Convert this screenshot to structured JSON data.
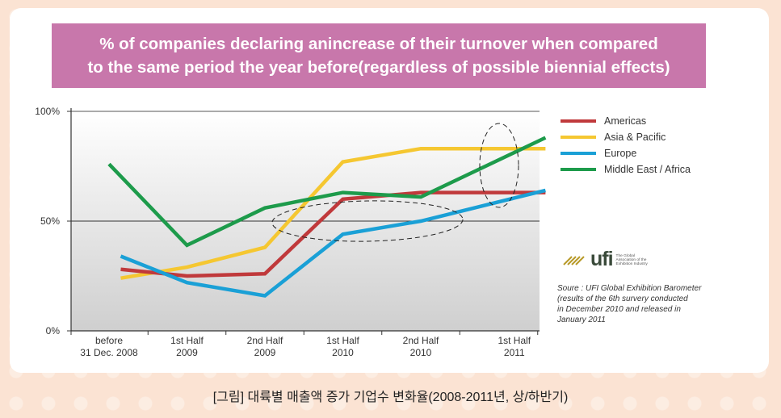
{
  "title": {
    "line1": "% of companies declaring anincrease of their turnover when compared",
    "line2": "to the same period the year before(regardless of possible biennial effects)"
  },
  "chart_data": {
    "type": "line",
    "categories": [
      [
        "before",
        "31 Dec. 2008"
      ],
      [
        "1st Half",
        "2009"
      ],
      [
        "2nd Half",
        "2009"
      ],
      [
        "1st Half",
        "2010"
      ],
      [
        "2nd Half",
        "2010"
      ],
      [
        "1st Half",
        "2011"
      ]
    ],
    "y_ticks": [
      "0%",
      "50%",
      "100%"
    ],
    "ylim": [
      0,
      100
    ],
    "grid": "50% line only",
    "legend_position": "right",
    "series": [
      {
        "name": "Americas",
        "color": "#c0393b",
        "values": [
          [
            0.15,
            28
          ],
          [
            1,
            25
          ],
          [
            2,
            26
          ],
          [
            3,
            60
          ],
          [
            4,
            63
          ],
          [
            5.6,
            63
          ]
        ]
      },
      {
        "name": "Asia & Pacific",
        "color": "#f5c731",
        "values": [
          [
            0.15,
            24
          ],
          [
            1,
            29
          ],
          [
            2,
            38
          ],
          [
            3,
            77
          ],
          [
            4,
            83
          ],
          [
            5.6,
            83
          ]
        ]
      },
      {
        "name": "Europe",
        "color": "#1aa0d6",
        "values": [
          [
            0.15,
            34
          ],
          [
            1,
            22
          ],
          [
            2,
            16
          ],
          [
            3,
            44
          ],
          [
            4,
            50
          ],
          [
            5.6,
            64
          ]
        ]
      },
      {
        "name": "Middle East / Africa",
        "color": "#1d9b4b",
        "values": [
          [
            0.0,
            76
          ],
          [
            1,
            39
          ],
          [
            2,
            56
          ],
          [
            3,
            63
          ],
          [
            4,
            61
          ],
          [
            5.6,
            88
          ]
        ]
      }
    ]
  },
  "logo": {
    "text": "ufi",
    "sub": [
      "The Global",
      "Association of the",
      "Exhibition Industry"
    ]
  },
  "source": [
    "Soure : UFI Global Exhibition Barometer",
    "(results of the 6th survery conducted",
    "in December 2010 and released in",
    "January 2011"
  ],
  "caption": "[그림] 대륙별 매출액 증가 기업수 변화율(2008-2011년, 상/하반기)"
}
